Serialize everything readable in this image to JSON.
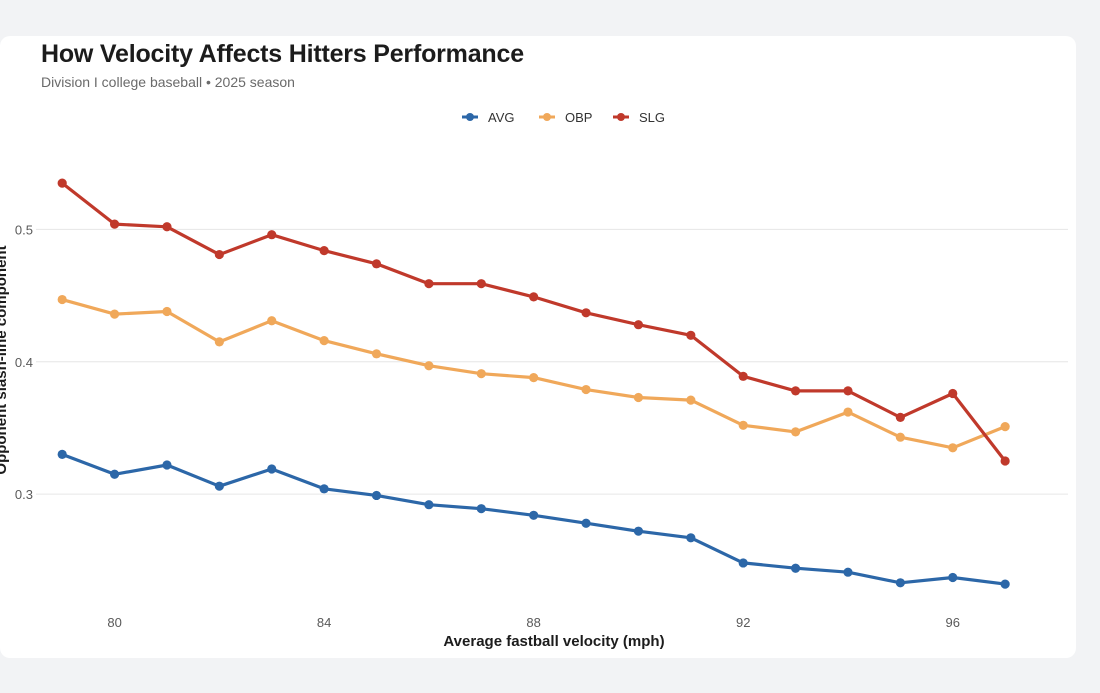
{
  "chart_data": {
    "type": "line",
    "title": "How Velocity Affects Hitters Performance",
    "subtitle": "Division I college baseball • 2025 season",
    "xlabel": "Average fastball velocity (mph)",
    "ylabel": "Opponent slash-line component",
    "xlim": [
      78.5,
      98.2
    ],
    "ylim": [
      0.22,
      0.56
    ],
    "x_ticks": [
      80,
      84,
      88,
      92,
      96
    ],
    "y_ticks": [
      0.3,
      0.4,
      0.5
    ],
    "y_tick_labels": [
      "0.3",
      "0.4",
      "0.5"
    ],
    "legend_position": "top-center",
    "x": [
      79,
      80,
      81,
      82,
      83,
      84,
      85,
      86,
      87,
      88,
      89,
      90,
      91,
      92,
      93,
      94,
      95,
      96,
      97
    ],
    "series": [
      {
        "name": "AVG",
        "color": "#2c67a8",
        "values": [
          0.33,
          0.315,
          0.322,
          0.306,
          0.319,
          0.304,
          0.299,
          0.292,
          0.289,
          0.284,
          0.278,
          0.272,
          0.267,
          0.248,
          0.244,
          0.241,
          0.233,
          0.237,
          0.232
        ]
      },
      {
        "name": "OBP",
        "color": "#f0a85a",
        "values": [
          0.447,
          0.436,
          0.438,
          0.415,
          0.431,
          0.416,
          0.406,
          0.397,
          0.391,
          0.388,
          0.379,
          0.373,
          0.371,
          0.352,
          0.347,
          0.362,
          0.343,
          0.335,
          0.351
        ]
      },
      {
        "name": "SLG",
        "color": "#c0392b",
        "values": [
          0.535,
          0.504,
          0.502,
          0.481,
          0.496,
          0.484,
          0.474,
          0.459,
          0.459,
          0.449,
          0.437,
          0.428,
          0.42,
          0.389,
          0.378,
          0.378,
          0.358,
          0.376,
          0.325
        ]
      }
    ]
  }
}
